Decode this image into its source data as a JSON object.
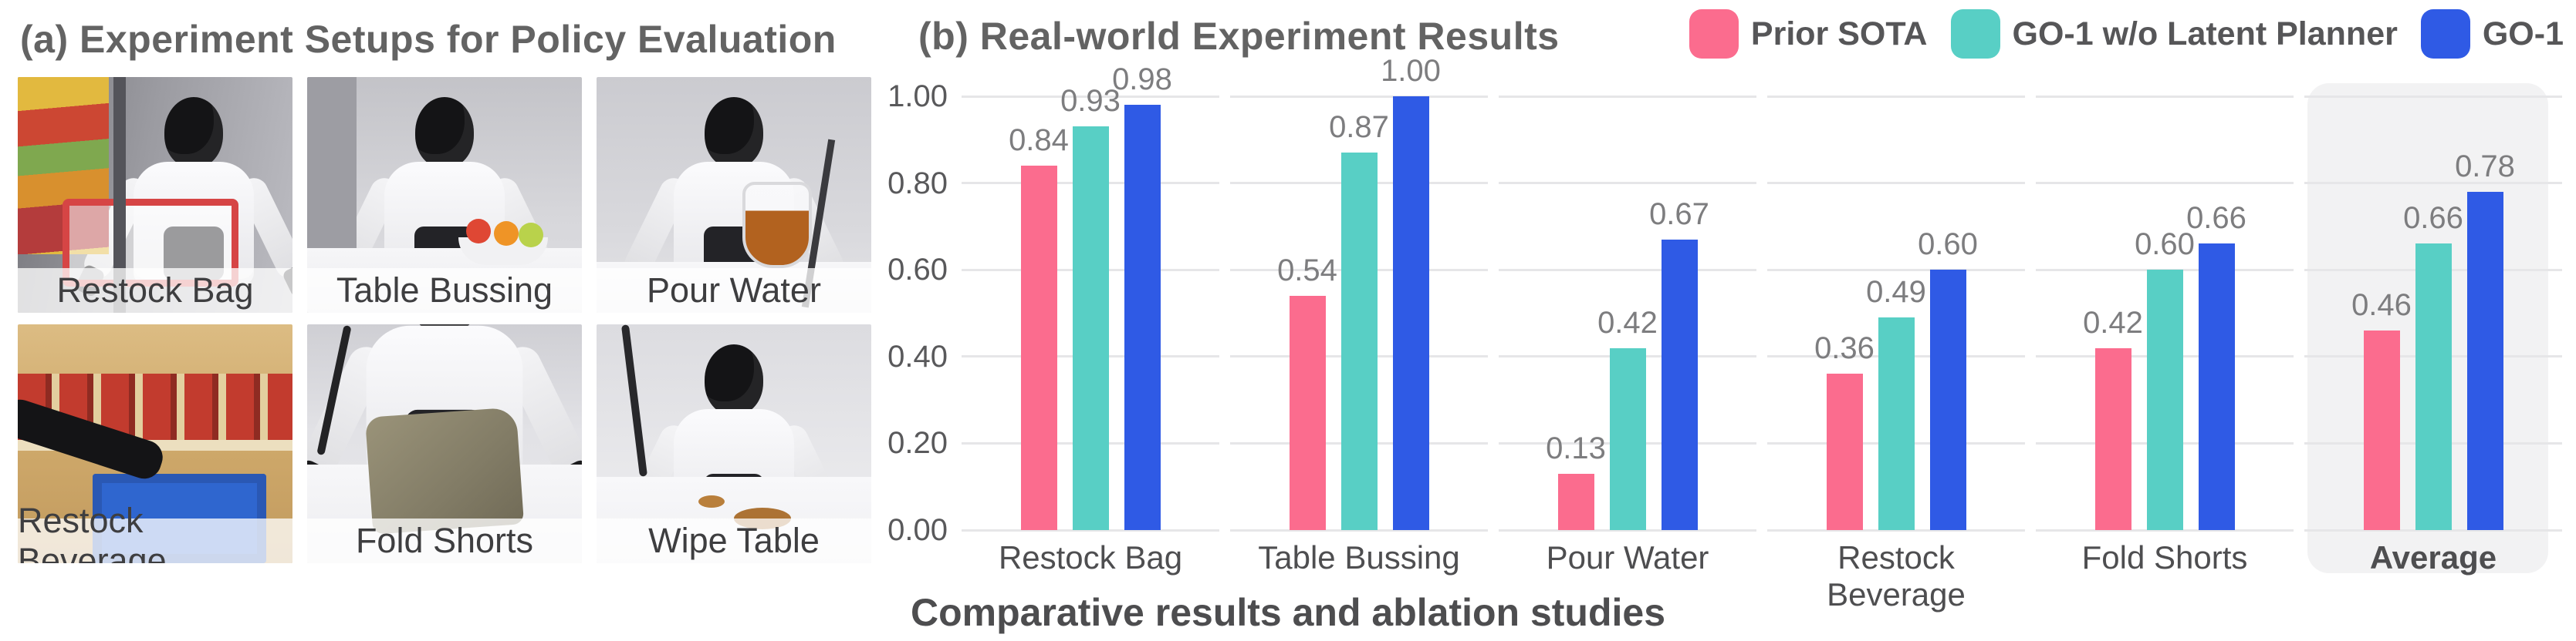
{
  "panel_a": {
    "title": "(a) Experiment Setups for Policy Evaluation",
    "photos": [
      {
        "label": "Restock Bag",
        "scene": "restock-bag"
      },
      {
        "label": "Table Bussing",
        "scene": "table-bussing"
      },
      {
        "label": "Pour Water",
        "scene": "pour-water"
      },
      {
        "label": "Restock Beverage",
        "scene": "restock-beverage"
      },
      {
        "label": "Fold Shorts",
        "scene": "fold-shorts"
      },
      {
        "label": "Wipe Table",
        "scene": "wipe-table"
      }
    ]
  },
  "panel_b": {
    "title": "(b) Real-world Experiment Results"
  },
  "chart_data": {
    "type": "bar",
    "title": "(b) Real-world Experiment Results",
    "categories": [
      "Restock Bag",
      "Table Bussing",
      "Pour Water",
      "Restock Beverage",
      "Fold Shorts",
      "Average"
    ],
    "series": [
      {
        "name": "Prior SOTA",
        "color": "#FB6C8E",
        "values": [
          0.84,
          0.54,
          0.13,
          0.36,
          0.42,
          0.46
        ]
      },
      {
        "name": "GO-1 w/o Latent Planner",
        "color": "#58CFC5",
        "values": [
          0.93,
          0.87,
          0.42,
          0.49,
          0.6,
          0.66
        ]
      },
      {
        "name": "GO-1",
        "color": "#2F5AE5",
        "values": [
          0.98,
          1.0,
          0.67,
          0.6,
          0.66,
          0.78
        ]
      }
    ],
    "xlabel": "",
    "ylabel": "",
    "ylim": [
      0,
      1
    ],
    "yticks": [
      "0.00",
      "0.20",
      "0.40",
      "0.60",
      "0.80",
      "1.00"
    ],
    "grid": true,
    "legend_position": "top-right",
    "highlight_category": "Average",
    "highlight_fill": "#F2F2F3",
    "value_labels": "2dp"
  },
  "caption": "Comparative results and ablation studies"
}
